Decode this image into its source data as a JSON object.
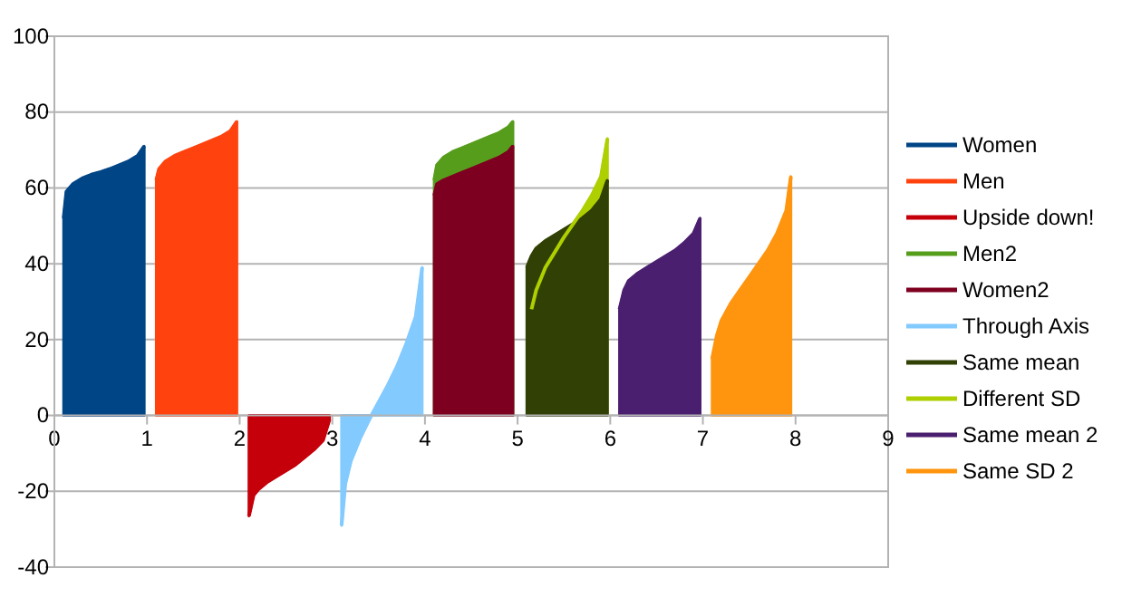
{
  "chart_data": {
    "type": "area",
    "xlim": [
      0,
      9
    ],
    "xticks": [
      0,
      1,
      2,
      3,
      4,
      5,
      6,
      7,
      8,
      9
    ],
    "ylim": [
      -40,
      100
    ],
    "yticks": [
      -40,
      -20,
      0,
      20,
      40,
      60,
      80,
      100
    ],
    "grid": "y",
    "legend": "right",
    "series": [
      {
        "name": "Women",
        "color": "#004586",
        "x": [
          0.1,
          0.13,
          0.2,
          0.3,
          0.4,
          0.5,
          0.6,
          0.7,
          0.8,
          0.9,
          0.97
        ],
        "values": [
          52,
          59,
          61,
          62.5,
          63.5,
          64.2,
          65,
          66,
          67,
          68.5,
          71
        ]
      },
      {
        "name": "Men",
        "color": "#ff420e",
        "x": [
          1.1,
          1.13,
          1.2,
          1.3,
          1.4,
          1.5,
          1.6,
          1.7,
          1.8,
          1.9,
          1.97
        ],
        "values": [
          62,
          65,
          67,
          68.5,
          69.5,
          70.5,
          71.5,
          72.5,
          73.5,
          75,
          77.5
        ]
      },
      {
        "name": "Upside down!",
        "color": "#c5000b",
        "x": [
          2.1,
          2.15,
          2.2,
          2.3,
          2.4,
          2.5,
          2.6,
          2.7,
          2.8,
          2.9,
          2.97
        ],
        "values": [
          -26.5,
          -21,
          -19.5,
          -17.5,
          -16,
          -14.5,
          -13,
          -11,
          -9,
          -6.5,
          -1
        ]
      },
      {
        "name": "Men2",
        "color": "#579d1c",
        "x": [
          4.1,
          4.13,
          4.2,
          4.3,
          4.4,
          4.5,
          4.6,
          4.7,
          4.8,
          4.9,
          4.95
        ],
        "values": [
          62,
          66,
          68,
          69.5,
          70.5,
          71.5,
          72.5,
          73.5,
          74.5,
          76,
          77.5
        ]
      },
      {
        "name": "Women2",
        "color": "#7e0021",
        "x": [
          4.1,
          4.13,
          4.2,
          4.3,
          4.4,
          4.5,
          4.6,
          4.7,
          4.8,
          4.9,
          4.95
        ],
        "values": [
          58,
          61,
          62,
          63,
          64,
          65,
          66,
          67,
          68,
          69.5,
          71
        ]
      },
      {
        "name": "Through Axis",
        "color": "#83caff",
        "x": [
          3.1,
          3.14,
          3.2,
          3.3,
          3.4,
          3.5,
          3.6,
          3.7,
          3.8,
          3.9,
          3.97
        ],
        "values": [
          -29,
          -18,
          -12,
          -6,
          -1,
          3.5,
          8,
          13,
          19,
          26,
          39
        ]
      },
      {
        "name": "Same mean",
        "color": "#314004",
        "x": [
          5.1,
          5.15,
          5.2,
          5.3,
          5.4,
          5.5,
          5.6,
          5.7,
          5.8,
          5.9,
          5.97
        ],
        "values": [
          39,
          42,
          44,
          46,
          47.5,
          49,
          50.5,
          52,
          54,
          57,
          62
        ]
      },
      {
        "name": "Different SD",
        "color": "#aecf00",
        "x": [
          5.15,
          5.2,
          5.3,
          5.4,
          5.5,
          5.6,
          5.7,
          5.8,
          5.9,
          5.97
        ],
        "values": [
          28,
          33,
          39,
          43,
          47,
          50.5,
          54,
          58,
          63,
          73
        ]
      },
      {
        "name": "Same mean 2",
        "color": "#4b1f6f",
        "x": [
          6.1,
          6.15,
          6.2,
          6.3,
          6.4,
          6.5,
          6.6,
          6.7,
          6.8,
          6.9,
          6.97
        ],
        "values": [
          28,
          33,
          35.5,
          37.5,
          39,
          40.5,
          42,
          43.5,
          45.5,
          48,
          52
        ]
      },
      {
        "name": "Same SD 2",
        "color": "#ff950e",
        "x": [
          7.1,
          7.15,
          7.2,
          7.3,
          7.4,
          7.5,
          7.6,
          7.7,
          7.8,
          7.9,
          7.95
        ],
        "values": [
          15,
          21,
          25,
          29.5,
          33,
          36.5,
          40,
          43.5,
          48,
          54,
          63
        ]
      }
    ]
  }
}
